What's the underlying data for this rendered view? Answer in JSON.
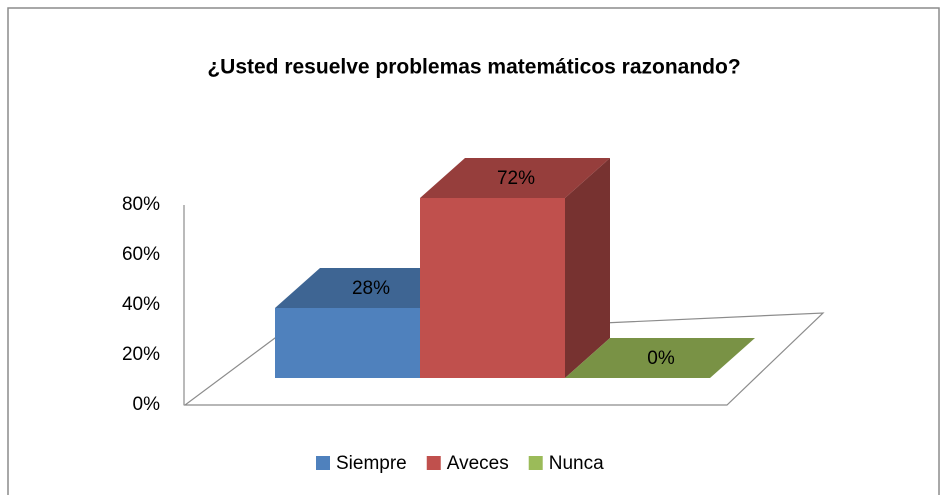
{
  "chart_data": {
    "type": "bar3d",
    "title": "¿Usted resuelve problemas matemáticos razonando?",
    "categories": [
      "Siempre",
      "Aveces",
      "Nunca"
    ],
    "series": [
      {
        "name": "Siempre",
        "color": "#4f81bd"
      },
      {
        "name": "Aveces",
        "color": "#c0504d"
      },
      {
        "name": "Nunca",
        "color": "#9bbb59"
      }
    ],
    "values": [
      28,
      72,
      0
    ],
    "value_labels": [
      "28%",
      "72%",
      "0%"
    ],
    "ylim": [
      0,
      80
    ],
    "yticks": [
      {
        "value": 0,
        "label": "0%"
      },
      {
        "value": 20,
        "label": "20%"
      },
      {
        "value": 40,
        "label": "40%"
      },
      {
        "value": 60,
        "label": "60%"
      },
      {
        "value": 80,
        "label": "80%"
      }
    ],
    "legend": "bottom"
  }
}
